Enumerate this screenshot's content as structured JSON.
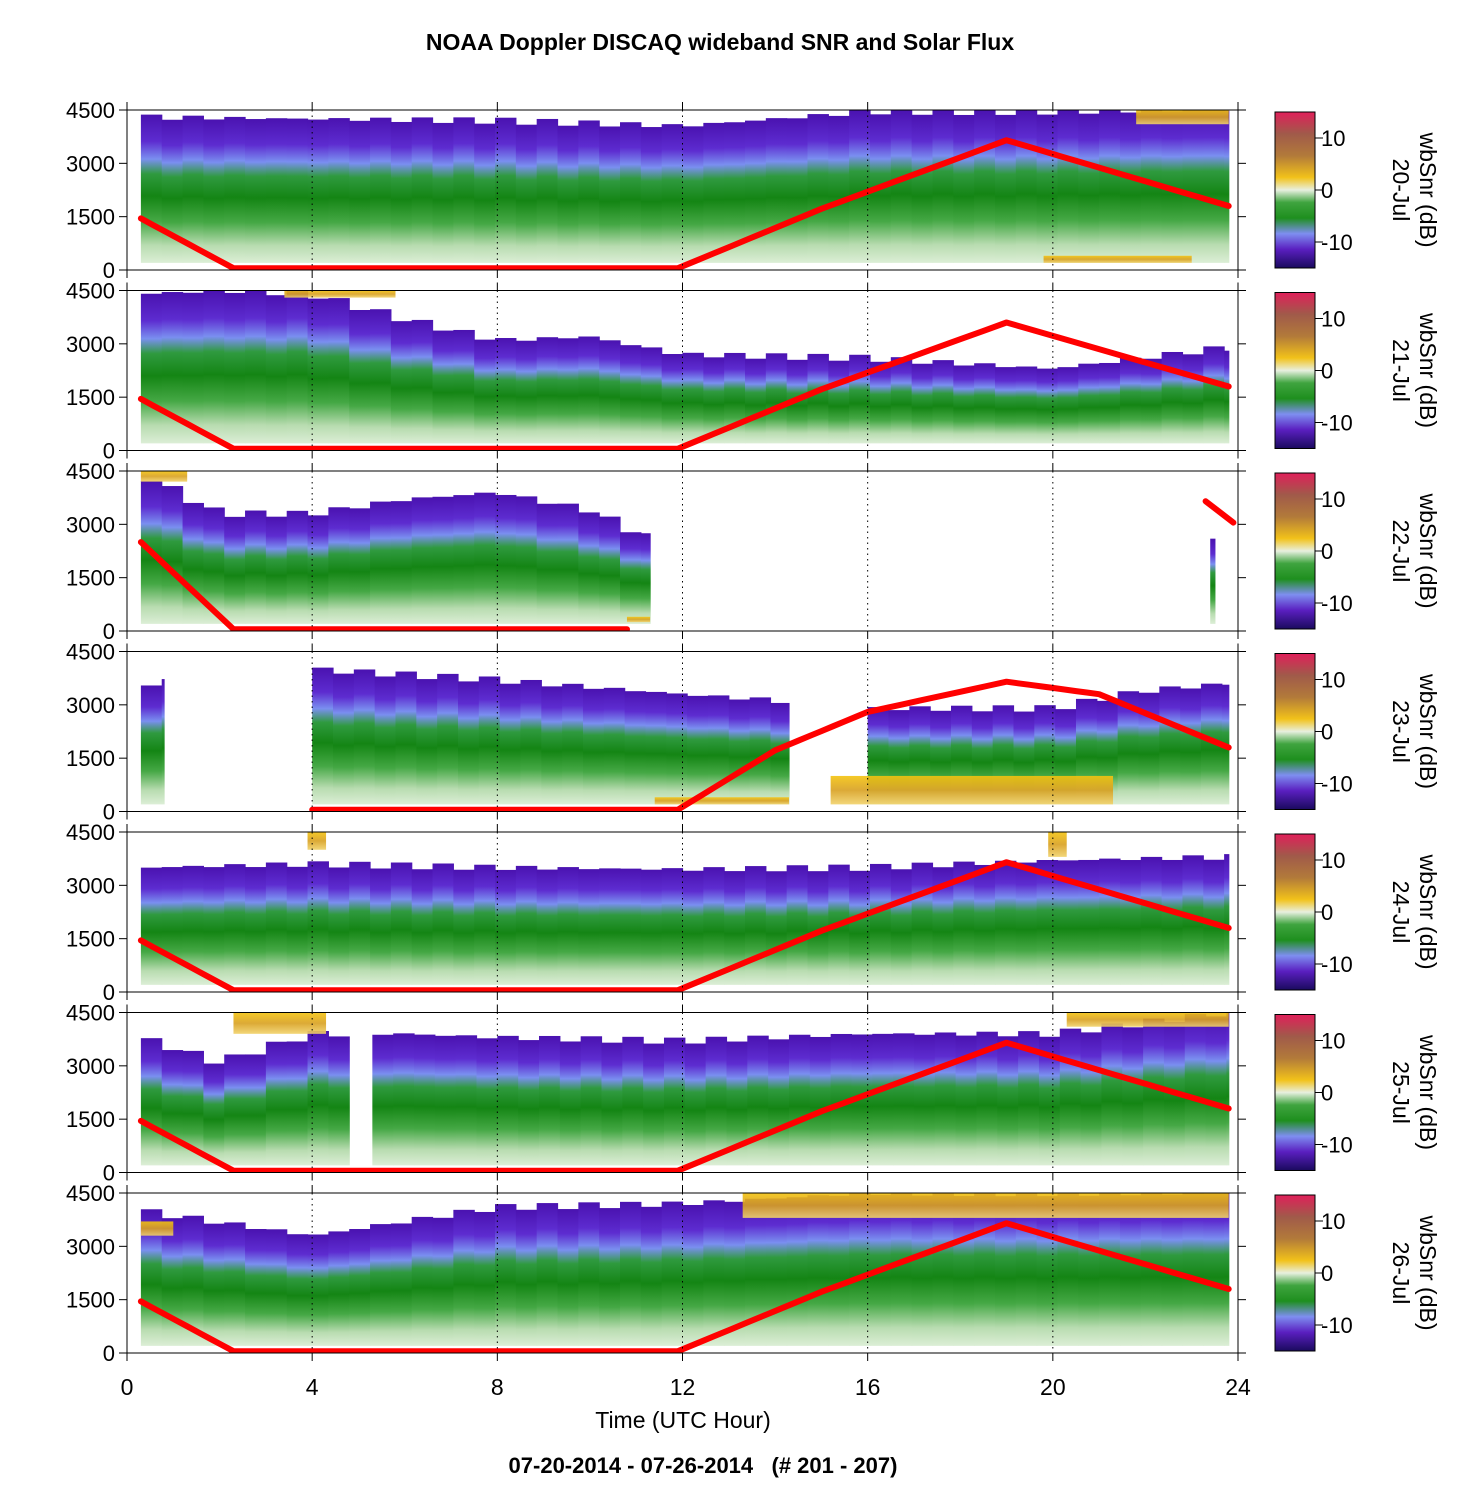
{
  "title": "NOAA Doppler DISCAQ wideband SNR and Solar Flux",
  "footer": "07-20-2014 - 07-26-2014   (# 201 - 207)",
  "colors": {
    "flux_line": "#ff0000",
    "grid": "#000000",
    "snr_colormap": [
      "#1a0a5e",
      "#5a1fc0",
      "#7e8ef0",
      "#1e8f1e",
      "#e8f0e0",
      "#f2c21a",
      "#a06a3a",
      "#e0205a"
    ]
  },
  "chart_data": {
    "type": "heatmap",
    "xlabel": "Time (UTC Hour)",
    "x_ticks": [
      0,
      4,
      8,
      12,
      16,
      20,
      24
    ],
    "xlim": [
      0,
      24
    ],
    "ylim": [
      0,
      4500
    ],
    "y_ticks": [
      0,
      1500,
      3000,
      4500
    ],
    "x_grid_dotted_at": [
      4,
      8,
      12,
      16,
      20,
      24
    ],
    "colorbar": {
      "label": "wbSnr (dB)",
      "range": [
        -15,
        15
      ],
      "ticks": [
        -10,
        0,
        10
      ]
    },
    "solar_flux_curve": {
      "description_shape": "sinusoid-like, zero from ~2.3 to ~11.9 UTC, peak near 19 UTC",
      "points": [
        [
          0.3,
          1450
        ],
        [
          1.3,
          720
        ],
        [
          2.3,
          50
        ],
        [
          4,
          50
        ],
        [
          8,
          50
        ],
        [
          11.9,
          50
        ],
        [
          13,
          560
        ],
        [
          14,
          1120
        ],
        [
          15,
          1720
        ],
        [
          16,
          2300
        ],
        [
          17,
          2820
        ],
        [
          18,
          3240
        ],
        [
          19,
          3600
        ],
        [
          20,
          3560
        ],
        [
          21,
          3300
        ],
        [
          22,
          2900
        ],
        [
          23,
          2400
        ],
        [
          23.8,
          1800
        ]
      ]
    },
    "panels": [
      {
        "day_label": "20-Jul",
        "coverage": [
          [
            0.3,
            23.8
          ]
        ],
        "snr_top": [
          [
            0.3,
            4300
          ],
          [
            4,
            4250
          ],
          [
            8,
            4200
          ],
          [
            12,
            4050
          ],
          [
            16,
            4450
          ],
          [
            20,
            4450
          ],
          [
            23.8,
            4500
          ]
        ],
        "high_snr_patches": [
          [
            21.8,
            23.8,
            4100,
            4500
          ],
          [
            19.8,
            23.0,
            200,
            400
          ]
        ],
        "flux": [
          [
            0.3,
            1450
          ],
          [
            2.3,
            50
          ],
          [
            11.9,
            50
          ],
          [
            15,
            1720
          ],
          [
            19,
            3650
          ],
          [
            23.8,
            1800
          ]
        ]
      },
      {
        "day_label": "21-Jul",
        "coverage": [
          [
            0.3,
            23.8
          ]
        ],
        "snr_top": [
          [
            0.3,
            4400
          ],
          [
            2,
            4500
          ],
          [
            4,
            4400
          ],
          [
            6,
            3700
          ],
          [
            8,
            3100
          ],
          [
            10,
            3200
          ],
          [
            12,
            2700
          ],
          [
            16,
            2600
          ],
          [
            20,
            2300
          ],
          [
            23.8,
            2900
          ]
        ],
        "high_snr_patches": [
          [
            3.4,
            5.8,
            4300,
            4500
          ]
        ],
        "flux": [
          [
            0.3,
            1450
          ],
          [
            2.3,
            50
          ],
          [
            11.9,
            50
          ],
          [
            15,
            1720
          ],
          [
            19,
            3600
          ],
          [
            23.8,
            1800
          ]
        ]
      },
      {
        "day_label": "22-Jul",
        "coverage": [
          [
            0.3,
            11.3
          ],
          [
            23.4,
            23.5
          ]
        ],
        "snr_top": [
          [
            0.3,
            4450
          ],
          [
            2,
            3300
          ],
          [
            4,
            3300
          ],
          [
            6,
            3700
          ],
          [
            8,
            3900
          ],
          [
            10,
            3400
          ],
          [
            11.3,
            2600
          ]
        ],
        "high_snr_patches": [
          [
            0.3,
            1.3,
            4200,
            4500
          ],
          [
            10.8,
            11.3,
            250,
            400
          ]
        ],
        "flux": [
          [
            0.3,
            2500
          ],
          [
            2.3,
            50
          ],
          [
            10.8,
            50
          ]
        ],
        "flux_tail": [
          [
            23.3,
            3650
          ],
          [
            23.9,
            3050
          ]
        ]
      },
      {
        "day_label": "23-Jul",
        "coverage": [
          [
            0.3,
            0.8
          ],
          [
            4,
            14.3
          ],
          [
            16,
            23.8
          ]
        ],
        "snr_top": [
          [
            0.3,
            3600
          ],
          [
            4,
            4000
          ],
          [
            8,
            3700
          ],
          [
            12,
            3300
          ],
          [
            14.3,
            3100
          ],
          [
            16,
            2900
          ],
          [
            20,
            2900
          ],
          [
            22,
            3400
          ],
          [
            23.8,
            3600
          ]
        ],
        "high_snr_patches": [
          [
            15.2,
            21.3,
            200,
            1000
          ],
          [
            11.4,
            14.3,
            200,
            400
          ]
        ],
        "flux": [
          [
            4,
            50
          ],
          [
            11.9,
            50
          ],
          [
            14,
            1720
          ],
          [
            16,
            2800
          ],
          [
            19,
            3650
          ],
          [
            21,
            3300
          ],
          [
            23.8,
            1800
          ]
        ]
      },
      {
        "day_label": "24-Jul",
        "coverage": [
          [
            0.3,
            23.8
          ]
        ],
        "snr_top": [
          [
            0.3,
            3500
          ],
          [
            4,
            3600
          ],
          [
            8,
            3500
          ],
          [
            12,
            3450
          ],
          [
            16,
            3500
          ],
          [
            20,
            3700
          ],
          [
            23.8,
            3800
          ]
        ],
        "high_snr_patches": [
          [
            3.9,
            4.3,
            4000,
            4500
          ],
          [
            19.9,
            20.3,
            3800,
            4500
          ]
        ],
        "flux": [
          [
            0.3,
            1450
          ],
          [
            2.3,
            50
          ],
          [
            11.9,
            50
          ],
          [
            15,
            1720
          ],
          [
            19,
            3650
          ],
          [
            23.8,
            1800
          ]
        ]
      },
      {
        "day_label": "25-Jul",
        "coverage": [
          [
            0.3,
            4.8
          ],
          [
            5.3,
            23.8
          ]
        ],
        "snr_top": [
          [
            0.3,
            3800
          ],
          [
            2,
            3100
          ],
          [
            4,
            3900
          ],
          [
            6,
            3900
          ],
          [
            8,
            3800
          ],
          [
            12,
            3700
          ],
          [
            16,
            3900
          ],
          [
            20,
            3900
          ],
          [
            23.8,
            4500
          ]
        ],
        "high_snr_patches": [
          [
            2.3,
            4.3,
            3900,
            4500
          ],
          [
            20.3,
            23.8,
            4100,
            4500
          ]
        ],
        "flux": [
          [
            0.3,
            1450
          ],
          [
            2.3,
            50
          ],
          [
            11.9,
            50
          ],
          [
            15,
            1720
          ],
          [
            19,
            3650
          ],
          [
            23.8,
            1800
          ]
        ]
      },
      {
        "day_label": "26-Jul",
        "coverage": [
          [
            0.3,
            23.8
          ]
        ],
        "snr_top": [
          [
            0.3,
            4000
          ],
          [
            4,
            3300
          ],
          [
            8,
            4100
          ],
          [
            12,
            4200
          ],
          [
            16,
            4500
          ],
          [
            20,
            4500
          ],
          [
            23.8,
            4500
          ]
        ],
        "high_snr_patches": [
          [
            0.3,
            1.0,
            3300,
            3700
          ],
          [
            13.3,
            23.8,
            3800,
            4500
          ]
        ],
        "flux": [
          [
            0.3,
            1450
          ],
          [
            2.3,
            50
          ],
          [
            11.9,
            50
          ],
          [
            15,
            1720
          ],
          [
            19,
            3650
          ],
          [
            23.8,
            1800
          ]
        ]
      }
    ]
  }
}
